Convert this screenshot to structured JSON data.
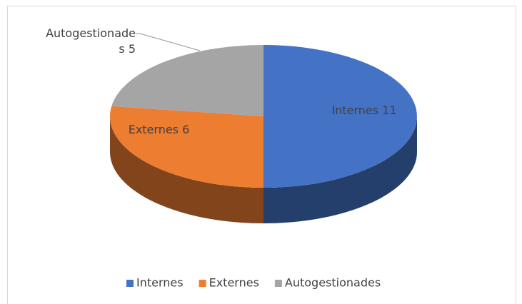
{
  "chart_data": {
    "type": "pie",
    "three_d": true,
    "categories": [
      "Internes",
      "Externes",
      "Autogestionades"
    ],
    "values": [
      11,
      6,
      5
    ],
    "value_labels": [
      "Internes 11",
      "Externes 6",
      "Autogestionades 5"
    ],
    "colors": [
      "#4472c4",
      "#ed7d31",
      "#a5a5a5"
    ],
    "legend": "bottom"
  }
}
